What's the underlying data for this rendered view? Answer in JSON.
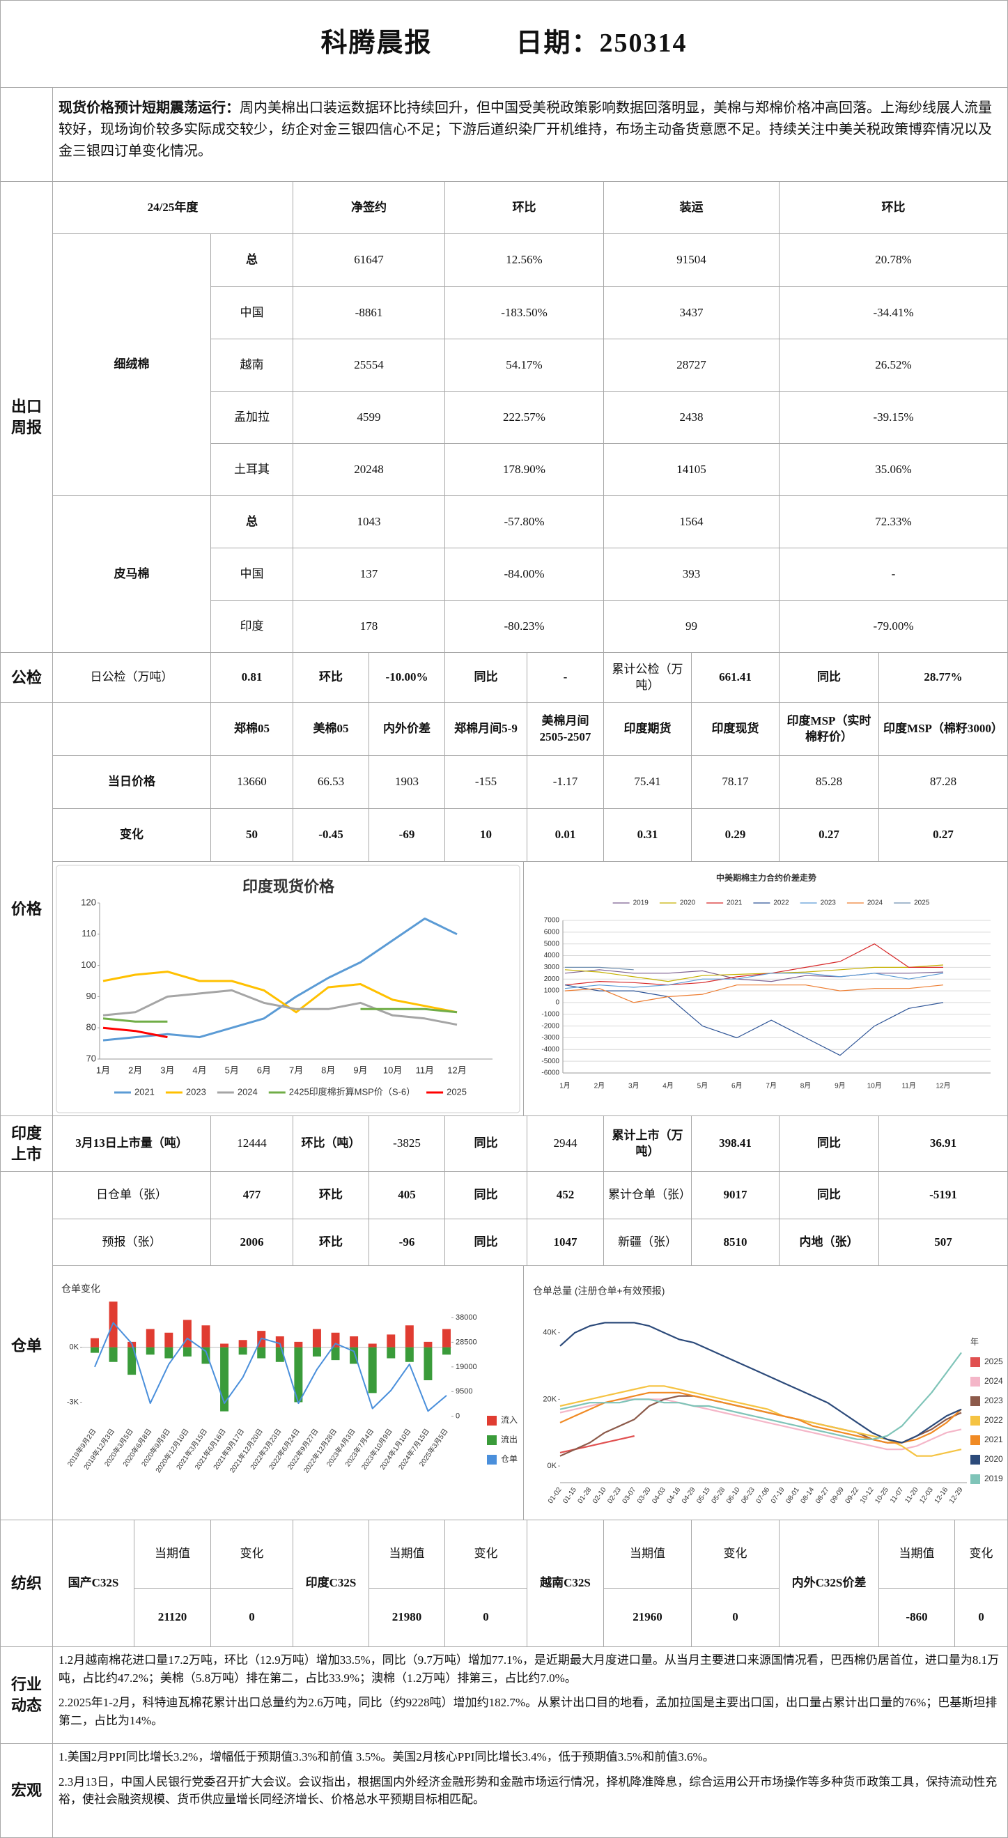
{
  "header": {
    "title": "科腾晨报",
    "date": "日期：250314"
  },
  "summary": {
    "lead": "现货价格预计短期震荡运行：",
    "text": "周内美棉出口装运数据环比持续回升，但中国受美税政策影响数据回落明显，美棉与郑棉价格冲高回落。上海纱线展人流量较好，现场询价较多实际成交较少，纺企对金三银四信心不足；下游后道织染厂开机维持，布场主动备货意愿不足。持续关注中美关税政策博弈情况以及金三银四订单变化情况。"
  },
  "export": {
    "label": "出口周报",
    "columns": [
      "24/25年度",
      "净签约",
      "环比",
      "装运",
      "环比"
    ],
    "groups": [
      {
        "name": "细绒棉",
        "rows": [
          [
            "总",
            "61647",
            "12.56%",
            "91504",
            "20.78%"
          ],
          [
            "中国",
            "-8861",
            "-183.50%",
            "3437",
            "-34.41%"
          ],
          [
            "越南",
            "25554",
            "54.17%",
            "28727",
            "26.52%"
          ],
          [
            "孟加拉",
            "4599",
            "222.57%",
            "2438",
            "-39.15%"
          ],
          [
            "土耳其",
            "20248",
            "178.90%",
            "14105",
            "35.06%"
          ]
        ]
      },
      {
        "name": "皮马棉",
        "rows": [
          [
            "总",
            "1043",
            "-57.80%",
            "1564",
            "72.33%"
          ],
          [
            "中国",
            "137",
            "-84.00%",
            "393",
            "-"
          ],
          [
            "印度",
            "178",
            "-80.23%",
            "99",
            "-79.00%"
          ]
        ]
      }
    ]
  },
  "inspection": {
    "label": "公检",
    "cells": [
      "日公检（万吨）",
      "0.81",
      "环比",
      "-10.00%",
      "同比",
      "-",
      "累计公检（万吨）",
      "661.41",
      "同比",
      "28.77%"
    ]
  },
  "price": {
    "label": "价格",
    "columns": [
      "郑棉05",
      "美棉05",
      "内外价差",
      "郑棉月间5-9",
      "美棉月间2505-2507",
      "印度期货",
      "印度现货",
      "印度MSP（实时棉籽价）",
      "印度MSP（棉籽3000）"
    ],
    "rows": [
      [
        "当日价格",
        "13660",
        "66.53",
        "1903",
        "-155",
        "-1.17",
        "75.41",
        "78.17",
        "85.28",
        "87.28"
      ],
      [
        "变化",
        "50",
        "-0.45",
        "-69",
        "10",
        "0.01",
        "0.31",
        "0.29",
        "0.27",
        "0.27"
      ]
    ]
  },
  "india_market": {
    "label": "印度上市",
    "cells": [
      "3月13日上市量（吨）",
      "12444",
      "环比（吨）",
      "-3825",
      "同比",
      "2944",
      "累计上市（万吨）",
      "398.41",
      "同比",
      "36.91"
    ]
  },
  "warehouse": {
    "label": "仓单",
    "rows": [
      [
        "日仓单（张）",
        "477",
        "环比",
        "405",
        "同比",
        "452",
        "累计仓单（张）",
        "9017",
        "同比",
        "-5191"
      ],
      [
        "预报（张）",
        "2006",
        "环比",
        "-96",
        "同比",
        "1047",
        "新疆（张）",
        "8510",
        "内地（张）",
        "507"
      ]
    ]
  },
  "textile": {
    "label": "纺织",
    "groups": [
      {
        "name": "国产C32S",
        "headers": [
          "当期值",
          "变化"
        ],
        "values": [
          "21120",
          "0"
        ]
      },
      {
        "name": "印度C32S",
        "headers": [
          "当期值",
          "变化"
        ],
        "values": [
          "21980",
          "0"
        ]
      },
      {
        "name": "越南C32S",
        "headers": [
          "当期值",
          "变化"
        ],
        "values": [
          "21960",
          "0"
        ]
      },
      {
        "name": "内外C32S价差",
        "headers": [
          "当期值",
          "变化"
        ],
        "values": [
          "-860",
          "0"
        ]
      }
    ]
  },
  "industry": {
    "label": "行业动态",
    "paragraphs": [
      "1.2月越南棉花进口量17.2万吨，环比（12.9万吨）增加33.5%，同比（9.7万吨）增加77.1%，是近期最大月度进口量。从当月主要进口来源国情况看，巴西棉仍居首位，进口量为8.1万吨，占比约47.2%；美棉（5.8万吨）排在第二，占比33.9%；澳棉（1.2万吨）排第三，占比约7.0%。",
      "2.2025年1-2月，科特迪瓦棉花累计出口总量约为2.6万吨，同比（约9228吨）增加约182.7%。从累计出口目的地看，孟加拉国是主要出口国，出口量占累计出口量的76%；巴基斯坦排第二，占比为14%。"
    ]
  },
  "macro": {
    "label": "宏观",
    "paragraphs": [
      "1.美国2月PPI同比增长3.2%，增幅低于预期值3.3%和前值 3.5%。美国2月核心PPI同比增长3.4%，低于预期值3.5%和前值3.6%。",
      "2.3月13日，中国人民银行党委召开扩大会议。会议指出，根据国内外经济金融形势和金融市场运行情况，择机降准降息，综合运用公开市场操作等多种货币政策工具，保持流动性充裕，使社会融资规模、货币供应量增长同经济增长、价格总水平预期目标相匹配。"
    ]
  },
  "charts": [
    {
      "type": "line",
      "title": "印度现货价格",
      "categories": [
        "1月",
        "2月",
        "3月",
        "4月",
        "5月",
        "6月",
        "7月",
        "8月",
        "9月",
        "10月",
        "11月",
        "12月"
      ],
      "ylim": [
        70,
        120
      ],
      "yticks": [
        70,
        80,
        90,
        100,
        110,
        120
      ],
      "grid": false,
      "legend": "bottom",
      "series": [
        {
          "name": "2021",
          "color": "#5b9bd5",
          "values": [
            76,
            77,
            78,
            77,
            80,
            83,
            90,
            96,
            101,
            108,
            115,
            110
          ]
        },
        {
          "name": "2023",
          "color": "#ffc000",
          "values": [
            95,
            97,
            98,
            95,
            95,
            92,
            85,
            93,
            94,
            89,
            87,
            85
          ]
        },
        {
          "name": "2024",
          "color": "#a5a5a5",
          "values": [
            84,
            85,
            90,
            91,
            92,
            88,
            86,
            86,
            88,
            84,
            83,
            81
          ]
        },
        {
          "name": "2425印度棉折算MSP价（S-6）",
          "color": "#70ad47",
          "values": [
            83,
            82,
            82,
            null,
            null,
            null,
            null,
            null,
            86,
            86,
            86,
            85
          ]
        },
        {
          "name": "2025",
          "color": "#ff0000",
          "values": [
            80,
            79,
            77,
            null,
            null,
            null,
            null,
            null,
            null,
            null,
            null,
            null
          ]
        }
      ]
    },
    {
      "type": "line",
      "title": "中美期棉主力合约价差走势",
      "categories": [
        "1月",
        "2月",
        "3月",
        "4月",
        "5月",
        "6月",
        "7月",
        "8月",
        "9月",
        "10月",
        "11月",
        "12月"
      ],
      "ylim": [
        -6000,
        7000
      ],
      "yticks": [
        -6000,
        -5000,
        -4000,
        -3000,
        -2000,
        -1000,
        0,
        1000,
        2000,
        3000,
        4000,
        5000,
        6000,
        7000
      ],
      "grid": true,
      "legend": "top",
      "series": [
        {
          "name": "2019",
          "color": "#7b5e8f",
          "values": [
            2500,
            2800,
            2500,
            2500,
            2700,
            2000,
            1800,
            2300,
            2200,
            2500,
            2500,
            2600
          ]
        },
        {
          "name": "2020",
          "color": "#c5b000",
          "values": [
            2800,
            2600,
            2200,
            1800,
            2300,
            2400,
            2500,
            2600,
            2800,
            3000,
            3000,
            3200
          ]
        },
        {
          "name": "2021",
          "color": "#d62728",
          "values": [
            1500,
            1800,
            1700,
            1500,
            1700,
            2200,
            2500,
            3000,
            3500,
            5000,
            3000,
            3000
          ]
        },
        {
          "name": "2022",
          "color": "#2f5597",
          "values": [
            1500,
            1000,
            1000,
            500,
            -2000,
            -3000,
            -1500,
            -3000,
            -4500,
            -2000,
            -500,
            0
          ]
        },
        {
          "name": "2023",
          "color": "#5b9bd5",
          "values": [
            1200,
            1500,
            1300,
            1500,
            2000,
            2000,
            2500,
            2500,
            2200,
            2500,
            2000,
            2500
          ]
        },
        {
          "name": "2024",
          "color": "#ed7d31",
          "values": [
            1000,
            1200,
            0,
            500,
            700,
            1500,
            1500,
            1500,
            1000,
            1200,
            1200,
            1500
          ]
        },
        {
          "name": "2025",
          "color": "#6f8fb0",
          "values": [
            3000,
            3000,
            2800,
            null,
            null,
            null,
            null,
            null,
            null,
            null,
            null,
            null
          ]
        }
      ]
    },
    {
      "type": "combo",
      "title": "仓单变化",
      "categories": [
        "2019年9月2日",
        "2019年12月3日",
        "2020年3月5日",
        "2020年6月8日",
        "2020年9月9日",
        "2020年12月10日",
        "2021年3月15日",
        "2021年6月16日",
        "2021年9月17日",
        "2021年12月20日",
        "2022年3月23日",
        "2022年6月24日",
        "2022年9月27日",
        "2022年12月28日",
        "2023年4月3日",
        "2023年7月4日",
        "2023年10月9日",
        "2024年1月10日",
        "2024年7月15日",
        "2025年3月5日"
      ],
      "ylim": [
        -4200,
        2200
      ],
      "yticks": [
        {
          "value": 0,
          "label": "0K"
        },
        {
          "value": -3000,
          "label": "-3K"
        }
      ],
      "y2lim": [
        -3000,
        42000
      ],
      "y2ticks": [
        0,
        9500,
        19000,
        28500,
        38000
      ],
      "legend": "right",
      "series": [
        {
          "name": "流入",
          "color": "#e03c31",
          "values": [
            500,
            2500,
            300,
            1000,
            800,
            1500,
            1200,
            200,
            400,
            900,
            600,
            300,
            1000,
            800,
            600,
            200,
            700,
            1200,
            300,
            1000
          ]
        },
        {
          "name": "流出",
          "color": "#3a9b3a",
          "values": [
            -300,
            -800,
            -1500,
            -400,
            -600,
            -500,
            -900,
            -3500,
            -400,
            -600,
            -800,
            -3000,
            -500,
            -700,
            -900,
            -2500,
            -600,
            -800,
            -1800,
            -400
          ]
        },
        {
          "name": "仓单",
          "color": "#4a8fdb",
          "axis": "y2",
          "values": [
            19000,
            36000,
            28000,
            5000,
            20000,
            30000,
            25000,
            5000,
            15000,
            30000,
            28000,
            5000,
            18000,
            28000,
            25000,
            3000,
            10000,
            20000,
            2000,
            8000
          ]
        }
      ]
    },
    {
      "type": "line",
      "title": "仓单总量 (注册仓单+有效预报)",
      "categories": [
        "01-02",
        "01-15",
        "01-28",
        "02-10",
        "02-23",
        "03-07",
        "03-20",
        "04-03",
        "04-16",
        "04-29",
        "05-15",
        "05-28",
        "06-10",
        "06-23",
        "07-06",
        "07-19",
        "08-01",
        "08-14",
        "08-27",
        "09-09",
        "09-22",
        "10-12",
        "10-25",
        "11-07",
        "11-20",
        "12-03",
        "12-16",
        "12-29"
      ],
      "ylim": [
        -5000,
        46000
      ],
      "yticks": [
        {
          "value": 0,
          "label": "0K"
        },
        {
          "value": 20000,
          "label": "20K"
        },
        {
          "value": 40000,
          "label": "40K"
        }
      ],
      "grid": false,
      "legend": "right",
      "legend_title": "年",
      "series": [
        {
          "name": "2025",
          "color": "#e05050",
          "values": [
            4000,
            5000,
            6000,
            7000,
            8000,
            9000,
            null,
            null,
            null,
            null,
            null,
            null,
            null,
            null,
            null,
            null,
            null,
            null,
            null,
            null,
            null,
            null,
            null,
            null,
            null,
            null,
            null,
            null
          ]
        },
        {
          "name": "2024",
          "color": "#f4b6c8",
          "values": [
            16000,
            17000,
            18000,
            19000,
            20000,
            20000,
            20000,
            20000,
            19000,
            18000,
            17000,
            16000,
            15000,
            14000,
            13000,
            12000,
            11000,
            10000,
            9000,
            8000,
            7000,
            6000,
            5000,
            5000,
            6000,
            8000,
            10000,
            11000
          ]
        },
        {
          "name": "2023",
          "color": "#8c5a4a",
          "values": [
            3000,
            5000,
            7000,
            10000,
            12000,
            14000,
            18000,
            20000,
            21000,
            21000,
            20000,
            19000,
            18000,
            17000,
            16000,
            15000,
            14000,
            13000,
            12000,
            11000,
            10000,
            8000,
            7000,
            7000,
            9000,
            11000,
            14000,
            16000
          ]
        },
        {
          "name": "2022",
          "color": "#f5c342",
          "values": [
            18000,
            19000,
            20000,
            21000,
            22000,
            23000,
            24000,
            24000,
            23000,
            22000,
            21000,
            20000,
            19000,
            18000,
            17000,
            15000,
            14000,
            13000,
            12000,
            11000,
            10000,
            9000,
            8000,
            6000,
            3000,
            3000,
            4000,
            5000
          ]
        },
        {
          "name": "2021",
          "color": "#f08a24",
          "values": [
            13000,
            15000,
            17000,
            19000,
            20000,
            21000,
            22000,
            22000,
            22000,
            21000,
            20000,
            19000,
            18000,
            17000,
            16000,
            15000,
            14000,
            12000,
            11000,
            10000,
            9000,
            8000,
            7000,
            7000,
            8000,
            10000,
            13000,
            17000
          ]
        },
        {
          "name": "2020",
          "color": "#2c4a7a",
          "values": [
            36000,
            40000,
            42000,
            43000,
            43000,
            43000,
            42000,
            40000,
            38000,
            37000,
            35000,
            33000,
            31000,
            29000,
            27000,
            25000,
            23000,
            21000,
            19000,
            16000,
            13000,
            10000,
            8000,
            7000,
            9000,
            12000,
            15000,
            17000
          ]
        },
        {
          "name": "2019",
          "color": "#7fc4b8",
          "values": [
            17000,
            18000,
            19000,
            19000,
            19000,
            20000,
            20000,
            19000,
            19000,
            18000,
            18000,
            17000,
            16000,
            15000,
            14000,
            13000,
            12000,
            11000,
            10000,
            9000,
            8000,
            8000,
            9000,
            12000,
            17000,
            22000,
            28000,
            34000
          ]
        }
      ]
    }
  ]
}
